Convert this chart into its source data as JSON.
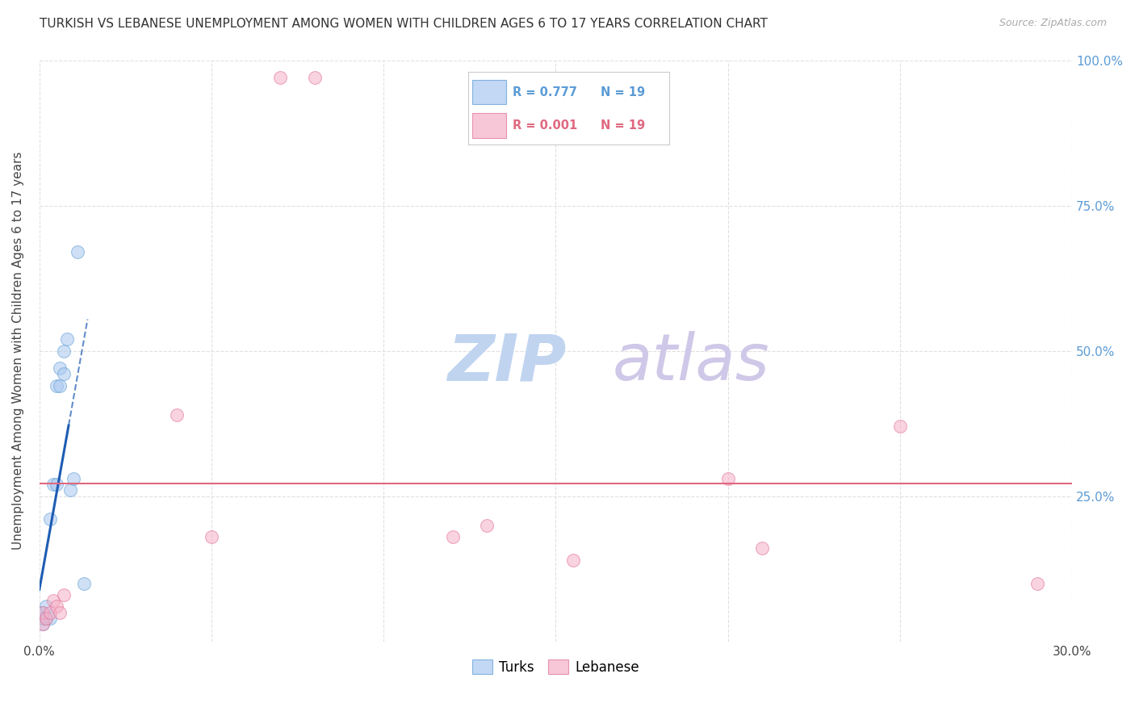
{
  "title": "TURKISH VS LEBANESE UNEMPLOYMENT AMONG WOMEN WITH CHILDREN AGES 6 TO 17 YEARS CORRELATION CHART",
  "source": "Source: ZipAtlas.com",
  "ylabel": "Unemployment Among Women with Children Ages 6 to 17 years",
  "xlim": [
    0.0,
    0.3
  ],
  "ylim": [
    0.0,
    1.0
  ],
  "xticks": [
    0.0,
    0.05,
    0.1,
    0.15,
    0.2,
    0.25,
    0.3
  ],
  "xticklabels": [
    "0.0%",
    "",
    "",
    "",
    "",
    "",
    "30.0%"
  ],
  "yticks": [
    0.0,
    0.25,
    0.5,
    0.75,
    1.0
  ],
  "yticklabels_right": [
    "",
    "25.0%",
    "50.0%",
    "75.0%",
    "100.0%"
  ],
  "turks_x": [
    0.001,
    0.001,
    0.001,
    0.002,
    0.002,
    0.003,
    0.003,
    0.004,
    0.005,
    0.005,
    0.006,
    0.006,
    0.007,
    0.007,
    0.008,
    0.009,
    0.01,
    0.011,
    0.013
  ],
  "turks_y": [
    0.03,
    0.04,
    0.05,
    0.04,
    0.06,
    0.04,
    0.21,
    0.27,
    0.27,
    0.44,
    0.44,
    0.47,
    0.46,
    0.5,
    0.52,
    0.26,
    0.28,
    0.67,
    0.1
  ],
  "lebanese_x": [
    0.001,
    0.001,
    0.002,
    0.003,
    0.004,
    0.005,
    0.006,
    0.007,
    0.04,
    0.05,
    0.07,
    0.08,
    0.12,
    0.13,
    0.155,
    0.2,
    0.21,
    0.25,
    0.29
  ],
  "lebanese_y": [
    0.03,
    0.05,
    0.04,
    0.05,
    0.07,
    0.06,
    0.05,
    0.08,
    0.39,
    0.18,
    0.97,
    0.97,
    0.18,
    0.2,
    0.14,
    0.28,
    0.16,
    0.37,
    0.1
  ],
  "turks_color": "#A8C8F0",
  "lebanese_color": "#F5B0C8",
  "turks_edge_color": "#5B9BD5",
  "lebanese_edge_color": "#E07090",
  "regression_blue_color": "#1E5CB3",
  "regression_pink_color": "#E06880",
  "marker_size": 130,
  "alpha": 0.55,
  "R_turks": "0.777",
  "N_turks": "19",
  "R_lebanese": "0.001",
  "N_lebanese": "19",
  "legend_label_turks": "Turks",
  "legend_label_lebanese": "Lebanese",
  "grid_color": "#E0E0E0",
  "background_color": "#FFFFFF",
  "watermark_zip": "ZIP",
  "watermark_atlas": "atlas",
  "watermark_color_zip": "#C0D4F0",
  "watermark_color_atlas": "#D0C8E8",
  "pink_line_y": 0.272
}
